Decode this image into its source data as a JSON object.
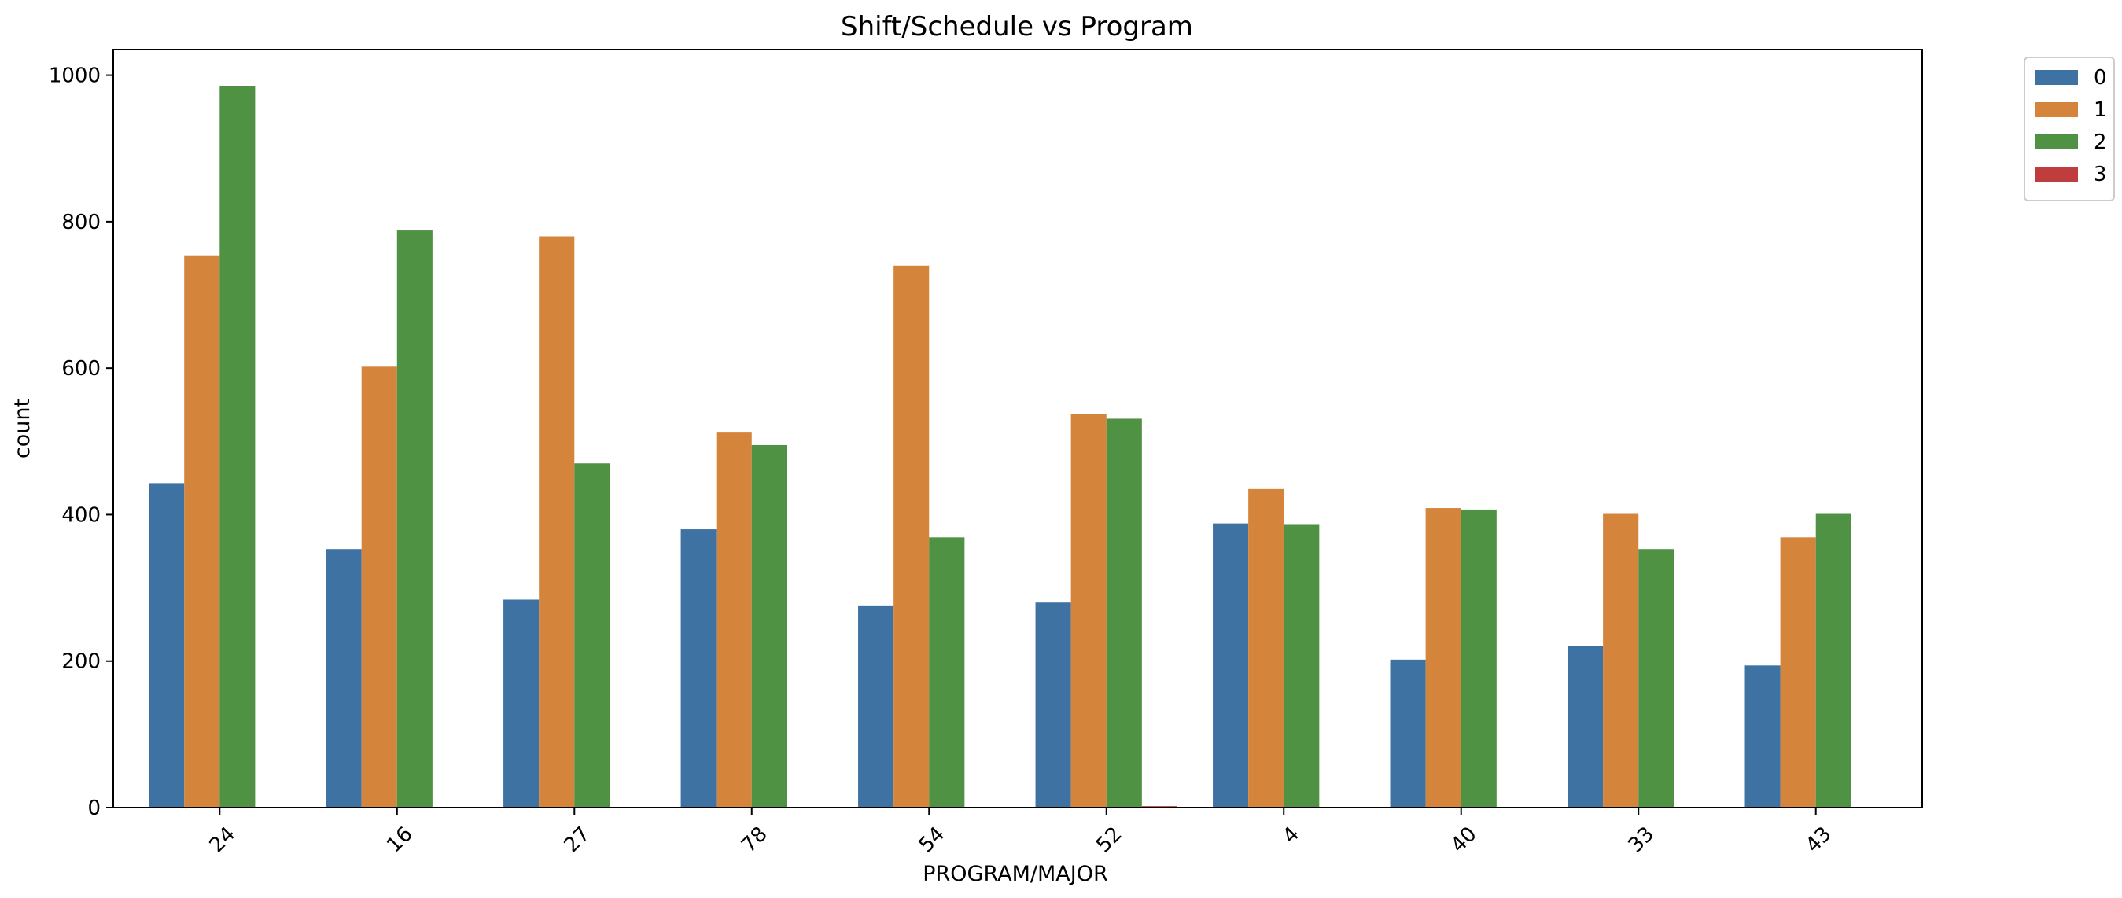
{
  "chart_data": {
    "type": "bar",
    "title": "Shift/Schedule vs Program",
    "xlabel": "PROGRAM/MAJOR",
    "ylabel": "count",
    "ylim": [
      0,
      1035
    ],
    "yticks": [
      0,
      200,
      400,
      600,
      800,
      1000
    ],
    "grid": false,
    "legend_position": "outside-top-right",
    "categories": [
      "24",
      "16",
      "27",
      "78",
      "54",
      "52",
      "4",
      "40",
      "33",
      "43"
    ],
    "series": [
      {
        "name": "0",
        "color": "#3e72a2",
        "values": [
          443,
          353,
          284,
          380,
          275,
          280,
          388,
          202,
          221,
          194
        ]
      },
      {
        "name": "1",
        "color": "#d5843c",
        "values": [
          754,
          602,
          780,
          512,
          740,
          537,
          435,
          409,
          401,
          369
        ]
      },
      {
        "name": "2",
        "color": "#509243",
        "values": [
          985,
          788,
          470,
          495,
          369,
          531,
          386,
          407,
          353,
          401
        ]
      },
      {
        "name": "3",
        "color": "#c03d3e",
        "values": [
          0,
          0,
          0,
          0,
          0,
          2,
          0,
          0,
          0,
          0
        ]
      }
    ]
  }
}
